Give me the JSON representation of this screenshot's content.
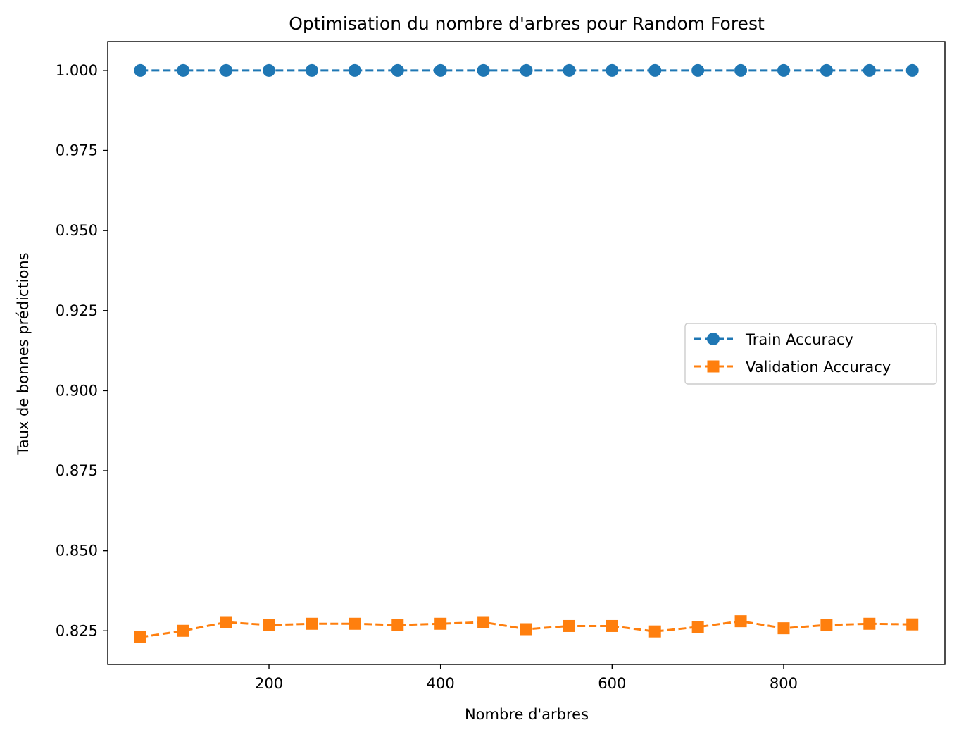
{
  "chart_data": {
    "type": "line",
    "title": "Optimisation du nombre d'arbres pour Random Forest",
    "xlabel": "Nombre d'arbres",
    "ylabel": "Taux de bonnes prédictions",
    "x": [
      50,
      100,
      150,
      200,
      250,
      300,
      350,
      400,
      450,
      500,
      550,
      600,
      650,
      700,
      750,
      800,
      850,
      900,
      950
    ],
    "xlim": [
      12,
      988
    ],
    "ylim": [
      0.8145,
      1.009
    ],
    "xticks": [
      200,
      400,
      600,
      800
    ],
    "xtick_labels": [
      "200",
      "400",
      "600",
      "800"
    ],
    "yticks": [
      0.825,
      0.85,
      0.875,
      0.9,
      0.925,
      0.95,
      0.975,
      1.0
    ],
    "ytick_labels": [
      "0.825",
      "0.850",
      "0.875",
      "0.900",
      "0.925",
      "0.950",
      "0.975",
      "1.000"
    ],
    "grid": false,
    "legend_position": "center-right",
    "series": [
      {
        "name": "Train Accuracy",
        "color": "#1f77b4",
        "marker": "circle",
        "linestyle": "dashed",
        "values": [
          1.0,
          1.0,
          1.0,
          1.0,
          1.0,
          1.0,
          1.0,
          1.0,
          1.0,
          1.0,
          1.0,
          1.0,
          1.0,
          1.0,
          1.0,
          1.0,
          1.0,
          1.0,
          1.0
        ]
      },
      {
        "name": "Validation Accuracy",
        "color": "#ff7f0e",
        "marker": "square",
        "linestyle": "dashed",
        "values": [
          0.823,
          0.825,
          0.8277,
          0.8268,
          0.8272,
          0.8272,
          0.8268,
          0.8272,
          0.8277,
          0.8255,
          0.8265,
          0.8265,
          0.8248,
          0.8262,
          0.828,
          0.8258,
          0.8268,
          0.8272,
          0.827
        ]
      }
    ]
  }
}
